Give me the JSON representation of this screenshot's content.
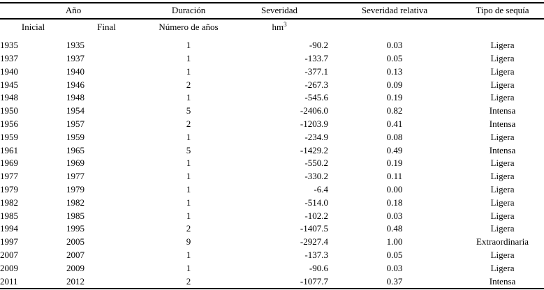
{
  "chart_data": {
    "type": "table",
    "headers": {
      "group_ano": "Año",
      "duracion": "Duración",
      "severidad": "Severidad",
      "severidad_relativa": "Severidad relativa",
      "tipo_de_sequia": "Tipo de sequía",
      "inicial": "Inicial",
      "final": "Final",
      "numero_de_anos": "Número de años",
      "severidad_unit": "hm",
      "severidad_unit_exponent": "3"
    },
    "rows": [
      {
        "inicial": "1935",
        "final": "1935",
        "duracion": "1",
        "severidad": "-90.2",
        "relativa": "0.03",
        "tipo": "Ligera"
      },
      {
        "inicial": "1937",
        "final": "1937",
        "duracion": "1",
        "severidad": "-133.7",
        "relativa": "0.05",
        "tipo": "Ligera"
      },
      {
        "inicial": "1940",
        "final": "1940",
        "duracion": "1",
        "severidad": "-377.1",
        "relativa": "0.13",
        "tipo": "Ligera"
      },
      {
        "inicial": "1945",
        "final": "1946",
        "duracion": "2",
        "severidad": "-267.3",
        "relativa": "0.09",
        "tipo": "Ligera"
      },
      {
        "inicial": "1948",
        "final": "1948",
        "duracion": "1",
        "severidad": "-545.6",
        "relativa": "0.19",
        "tipo": "Ligera"
      },
      {
        "inicial": "1950",
        "final": "1954",
        "duracion": "5",
        "severidad": "-2406.0",
        "relativa": "0.82",
        "tipo": "Intensa"
      },
      {
        "inicial": "1956",
        "final": "1957",
        "duracion": "2",
        "severidad": "-1203.9",
        "relativa": "0.41",
        "tipo": "Intensa"
      },
      {
        "inicial": "1959",
        "final": "1959",
        "duracion": "1",
        "severidad": "-234.9",
        "relativa": "0.08",
        "tipo": "Ligera"
      },
      {
        "inicial": "1961",
        "final": "1965",
        "duracion": "5",
        "severidad": "-1429.2",
        "relativa": "0.49",
        "tipo": "Intensa"
      },
      {
        "inicial": "1969",
        "final": "1969",
        "duracion": "1",
        "severidad": "-550.2",
        "relativa": "0.19",
        "tipo": "Ligera"
      },
      {
        "inicial": "1977",
        "final": "1977",
        "duracion": "1",
        "severidad": "-330.2",
        "relativa": "0.11",
        "tipo": "Ligera"
      },
      {
        "inicial": "1979",
        "final": "1979",
        "duracion": "1",
        "severidad": "-6.4",
        "relativa": "0.00",
        "tipo": "Ligera"
      },
      {
        "inicial": "1982",
        "final": "1982",
        "duracion": "1",
        "severidad": "-514.0",
        "relativa": "0.18",
        "tipo": "Ligera"
      },
      {
        "inicial": "1985",
        "final": "1985",
        "duracion": "1",
        "severidad": "-102.2",
        "relativa": "0.03",
        "tipo": "Ligera"
      },
      {
        "inicial": "1994",
        "final": "1995",
        "duracion": "2",
        "severidad": "-1407.5",
        "relativa": "0.48",
        "tipo": "Ligera"
      },
      {
        "inicial": "1997",
        "final": "2005",
        "duracion": "9",
        "severidad": "-2927.4",
        "relativa": "1.00",
        "tipo": "Extraordinaria"
      },
      {
        "inicial": "2007",
        "final": "2007",
        "duracion": "1",
        "severidad": "-137.3",
        "relativa": "0.05",
        "tipo": "Ligera"
      },
      {
        "inicial": "2009",
        "final": "2009",
        "duracion": "1",
        "severidad": "-90.6",
        "relativa": "0.03",
        "tipo": "Ligera"
      },
      {
        "inicial": "2011",
        "final": "2012",
        "duracion": "2",
        "severidad": "-1077.7",
        "relativa": "0.37",
        "tipo": "Intensa"
      }
    ],
    "layout": {
      "border_color": "#000000",
      "background": "#ffffff",
      "text_color": "#000000"
    }
  }
}
